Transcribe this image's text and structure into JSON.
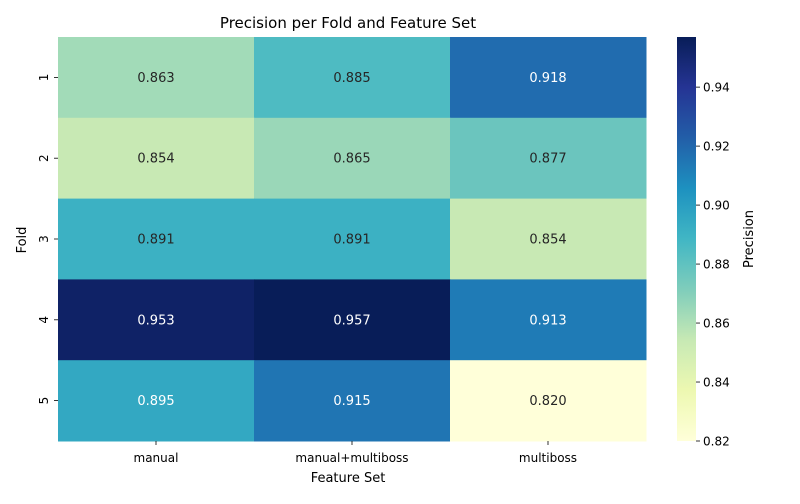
{
  "chart_data": {
    "type": "heatmap",
    "title": "Precision per Fold and Feature Set",
    "xlabel": "Feature Set",
    "ylabel": "Fold",
    "x_categories": [
      "manual",
      "manual+multiboss",
      "multiboss"
    ],
    "y_categories": [
      "1",
      "2",
      "3",
      "4",
      "5"
    ],
    "values": [
      [
        0.863,
        0.885,
        0.918
      ],
      [
        0.854,
        0.865,
        0.877
      ],
      [
        0.891,
        0.891,
        0.854
      ],
      [
        0.953,
        0.957,
        0.913
      ],
      [
        0.895,
        0.915,
        0.82
      ]
    ],
    "value_labels": [
      [
        "0.863",
        "0.885",
        "0.918"
      ],
      [
        "0.854",
        "0.865",
        "0.877"
      ],
      [
        "0.891",
        "0.891",
        "0.854"
      ],
      [
        "0.953",
        "0.957",
        "0.913"
      ],
      [
        "0.895",
        "0.915",
        "0.820"
      ]
    ],
    "colorbar": {
      "label": "Precision",
      "colormap": "YlGnBu",
      "vmin": 0.82,
      "vmax": 0.957,
      "ticks": [
        "0.82",
        "0.84",
        "0.86",
        "0.88",
        "0.90",
        "0.92",
        "0.94"
      ]
    }
  }
}
